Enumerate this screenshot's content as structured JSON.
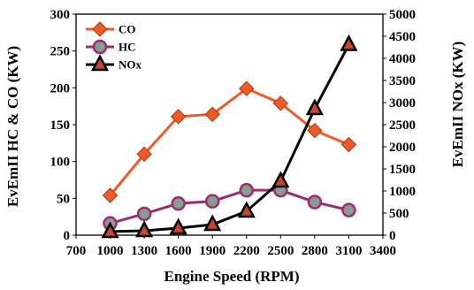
{
  "chart_data": {
    "type": "line",
    "x": [
      1000,
      1300,
      1600,
      1900,
      2200,
      2500,
      2800,
      3100
    ],
    "xlabel": "Engine Speed (RPM)",
    "xlim": [
      700,
      3400
    ],
    "xticks": [
      700,
      1000,
      1300,
      1600,
      1900,
      2200,
      2500,
      2800,
      3100,
      3400
    ],
    "ylabel_left": "EvEmII HC & CO (KW)",
    "ylim_left": [
      0,
      300
    ],
    "yticks_left": [
      0,
      50,
      100,
      150,
      200,
      250,
      300
    ],
    "ylabel_right": "EvEmII NOx (KW)",
    "ylim_right": [
      0,
      5000
    ],
    "yticks_right": [
      0,
      500,
      1000,
      1500,
      2000,
      2500,
      3000,
      3500,
      4000,
      4500,
      5000
    ],
    "legend_position": "top-left",
    "grid": false,
    "series": [
      {
        "name": "CO",
        "axis": "left",
        "color": "#f05a28",
        "marker": "diamond",
        "values": [
          54,
          110,
          161,
          164,
          199,
          179,
          142,
          123
        ]
      },
      {
        "name": "HC",
        "axis": "left",
        "color": "#9b2c6e",
        "marker": "circle",
        "values": [
          16,
          29,
          43,
          46,
          61,
          61,
          45,
          34
        ]
      },
      {
        "name": "NOx",
        "axis": "right",
        "color": "#000000",
        "marker": "triangle",
        "values": [
          80,
          100,
          160,
          240,
          540,
          1220,
          2860,
          4310
        ]
      }
    ]
  }
}
